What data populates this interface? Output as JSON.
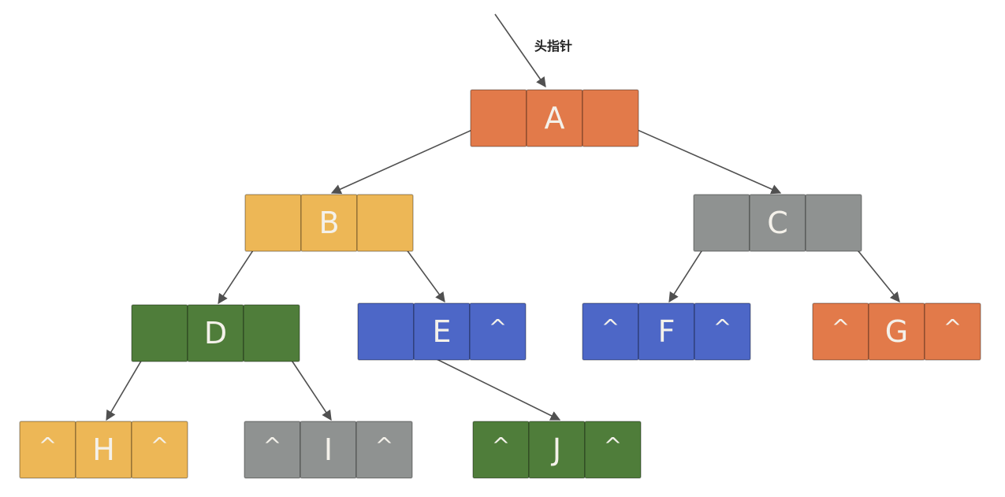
{
  "head_pointer": {
    "label": "头指针"
  },
  "colors": {
    "orange": "#e27a4a",
    "yellow": "#edb756",
    "gray": "#8f9291",
    "green": "#4f7d3a",
    "blue": "#4d67c7"
  },
  "nodes": [
    {
      "id": "A",
      "left": "",
      "data": "A",
      "right": "",
      "color": "orange"
    },
    {
      "id": "B",
      "left": "",
      "data": "B",
      "right": "",
      "color": "yellow"
    },
    {
      "id": "C",
      "left": "",
      "data": "C",
      "right": "",
      "color": "gray"
    },
    {
      "id": "D",
      "left": "",
      "data": "D",
      "right": "",
      "color": "green"
    },
    {
      "id": "E",
      "left": "",
      "data": "E",
      "right": "^",
      "color": "blue"
    },
    {
      "id": "F",
      "left": "^",
      "data": "F",
      "right": "^",
      "color": "blue"
    },
    {
      "id": "G",
      "left": "^",
      "data": "G",
      "right": "^",
      "color": "orange"
    },
    {
      "id": "H",
      "left": "^",
      "data": "H",
      "right": "^",
      "color": "yellow"
    },
    {
      "id": "I",
      "left": "^",
      "data": "I",
      "right": "^",
      "color": "gray"
    },
    {
      "id": "J",
      "left": "^",
      "data": "J",
      "right": "^",
      "color": "green"
    }
  ],
  "edges": [
    {
      "from": "A",
      "side": "left",
      "to": "B"
    },
    {
      "from": "A",
      "side": "right",
      "to": "C"
    },
    {
      "from": "B",
      "side": "left",
      "to": "D"
    },
    {
      "from": "B",
      "side": "right",
      "to": "E"
    },
    {
      "from": "C",
      "side": "left",
      "to": "F"
    },
    {
      "from": "C",
      "side": "right",
      "to": "G"
    },
    {
      "from": "D",
      "side": "left",
      "to": "H"
    },
    {
      "from": "D",
      "side": "right",
      "to": "I"
    },
    {
      "from": "E",
      "side": "left",
      "to": "J"
    }
  ]
}
